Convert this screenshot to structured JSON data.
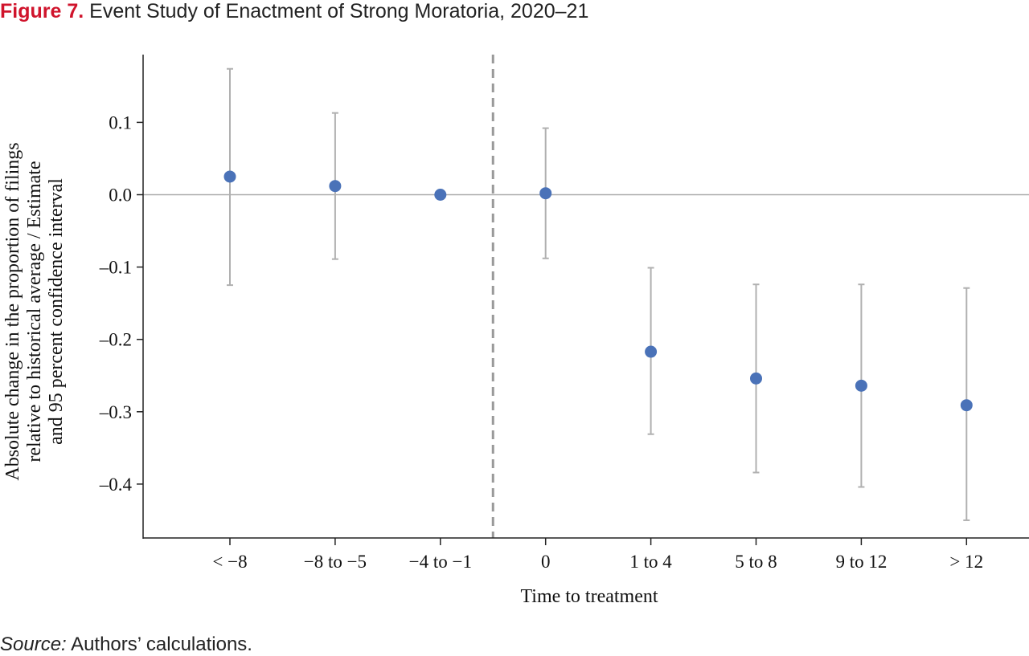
{
  "figure": {
    "label": "Figure 7.",
    "title": "Event Study of Enactment of Strong Moratoria, 2020–21"
  },
  "source": {
    "label": "Source:",
    "text": "Authors’ calculations."
  },
  "chart_data": {
    "type": "scatter",
    "categories": [
      "< −8",
      "−8 to −5",
      "−4 to −1",
      "0",
      "1 to 4",
      "5 to 8",
      "9 to 12",
      "> 12"
    ],
    "series": [
      {
        "values": [
          0.025,
          0.012,
          0.0,
          0.002,
          -0.217,
          -0.254,
          -0.264,
          -0.291
        ],
        "ci_lower": [
          -0.125,
          -0.089,
          null,
          -0.088,
          -0.331,
          -0.384,
          -0.404,
          -0.45
        ],
        "ci_upper": [
          0.174,
          0.113,
          null,
          0.092,
          -0.101,
          -0.124,
          -0.124,
          -0.129
        ]
      }
    ],
    "xlabel": "Time to treatment",
    "ylabel_lines": [
      "Absolute change in the proportion of filings",
      "relative to historical average / Estimate",
      "and 95 percent confidence interval"
    ],
    "yticks": [
      0.1,
      0.0,
      -0.1,
      -0.2,
      -0.3,
      -0.4
    ],
    "ytick_labels": [
      "0.1",
      "0.0",
      "–0.1",
      "–0.2",
      "–0.3",
      "–0.4"
    ],
    "ylim": [
      -0.475,
      0.195
    ],
    "reference_line_y": 0,
    "treatment_divider": "between −4 to −1 and 0",
    "grid": false,
    "colors": {
      "point": "#4a72b8",
      "interval": "#b0b0b0",
      "zero_line": "#aaaaaa",
      "divider": "#999999",
      "axis": "#222222"
    }
  }
}
